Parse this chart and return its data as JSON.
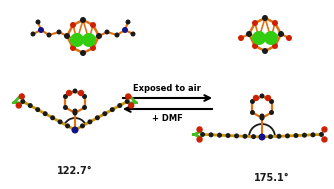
{
  "background_color": "#ffffff",
  "arrow_label_top": "Exposed to air",
  "arrow_label_bottom": "+ DMF",
  "angle_left": "122.7°",
  "angle_right": "175.1°",
  "colors": {
    "black": "#1a1a1a",
    "orange": "#E07010",
    "red": "#CC2200",
    "green": "#33CC11",
    "blue_dark": "#111188",
    "yellow_bond": "#CC9900",
    "green_arrow": "#44BB22"
  },
  "fig_width": 3.34,
  "fig_height": 1.89,
  "dpi": 100
}
